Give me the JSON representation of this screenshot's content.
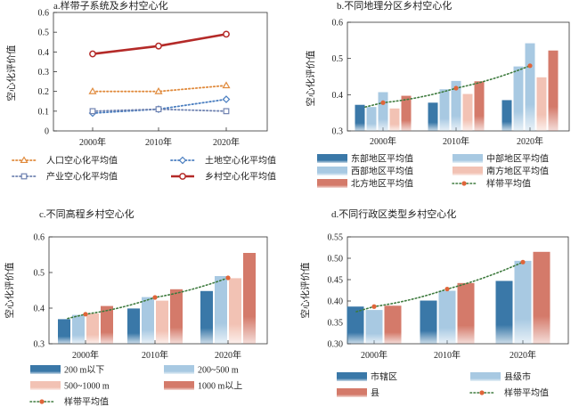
{
  "colors": {
    "dark_blue": "#3a78a8",
    "light_blue": "#a8c9e2",
    "light_pink": "#f2c2b4",
    "red": "#d47a6a",
    "dark_red": "#b42a28",
    "orange": "#e08a3c",
    "blue_dot": "#4a7ec0",
    "slate": "#6f82b0",
    "trend_green": "#3d7a3d",
    "trend_point": "#e0653a"
  },
  "chart_data": [
    {
      "id": "a",
      "type": "line",
      "title": "a.样带子系统及乡村空心化",
      "ylabel": "空心化评价值",
      "categories": [
        "2000年",
        "2010年",
        "2020年"
      ],
      "ylim": [
        0,
        0.6
      ],
      "yticks": [
        "0",
        "0.1",
        "0.2",
        "0.3",
        "0.4",
        "0.5",
        "0.6"
      ],
      "series": [
        {
          "name": "人口空心化平均值",
          "values": [
            0.2,
            0.2,
            0.23
          ],
          "color": "#e08a3c",
          "marker": "triangle",
          "dash": "dot"
        },
        {
          "name": "土地空心化平均值",
          "values": [
            0.09,
            0.11,
            0.16
          ],
          "color": "#4a7ec0",
          "marker": "diamond",
          "dash": "dot"
        },
        {
          "name": "产业空心化平均值",
          "values": [
            0.1,
            0.11,
            0.1
          ],
          "color": "#6f82b0",
          "marker": "square",
          "dash": "dot"
        },
        {
          "name": "乡村空心化平均值",
          "values": [
            0.39,
            0.43,
            0.49
          ],
          "color": "#b42a28",
          "marker": "circle",
          "dash": "solid"
        }
      ],
      "legend_order": [
        0,
        1,
        2,
        3
      ]
    },
    {
      "id": "b",
      "type": "bar",
      "title": "b.不同地理分区乡村空心化",
      "ylabel": "空心化评价值",
      "categories": [
        "2000年",
        "2010年",
        "2020年"
      ],
      "ylim": [
        0.3,
        0.6
      ],
      "yticks": [
        "0.3",
        "0.4",
        "0.5",
        "0.6"
      ],
      "series": [
        {
          "name": "东部地区平均值",
          "values": [
            0.372,
            0.378,
            0.385
          ],
          "color": "#3a78a8"
        },
        {
          "name": "西部地区平均值",
          "values": [
            0.366,
            0.415,
            0.478
          ],
          "color": "#a8c9e2"
        },
        {
          "name": "中部地区平均值",
          "values": [
            0.407,
            0.438,
            0.542
          ],
          "color": "#a8c9e2"
        },
        {
          "name": "南方地区平均值",
          "values": [
            0.362,
            0.402,
            0.448
          ],
          "color": "#f2c2b4"
        },
        {
          "name": "北方地区平均值",
          "values": [
            0.397,
            0.437,
            0.522
          ],
          "color": "#d47a6a"
        }
      ],
      "trend": {
        "name": "样带平均值",
        "values": [
          0.378,
          0.418,
          0.48
        ]
      },
      "legend_order": [
        0,
        2,
        1,
        3,
        4,
        "trend"
      ]
    },
    {
      "id": "c",
      "type": "bar",
      "title": "c.不同高程乡村空心化",
      "ylabel": "空心化评价值",
      "categories": [
        "2000年",
        "2010年",
        "2020年"
      ],
      "ylim": [
        0.3,
        0.6
      ],
      "yticks": [
        "0.3",
        "0.4",
        "0.5",
        "0.6"
      ],
      "series": [
        {
          "name": "200 m以下",
          "values": [
            0.369,
            0.399,
            0.448
          ],
          "color": "#3a78a8"
        },
        {
          "name": "200~500 m",
          "values": [
            0.381,
            0.431,
            0.49
          ],
          "color": "#a8c9e2"
        },
        {
          "name": "500~1000 m",
          "values": [
            0.385,
            0.421,
            0.484
          ],
          "color": "#f2c2b4"
        },
        {
          "name": "1000 m以上",
          "values": [
            0.406,
            0.453,
            0.555
          ],
          "color": "#d47a6a"
        }
      ],
      "trend": {
        "name": "样带平均值",
        "values": [
          0.383,
          0.43,
          0.485
        ]
      },
      "legend_order": [
        0,
        1,
        2,
        3,
        "trend"
      ]
    },
    {
      "id": "d",
      "type": "bar",
      "title": "d.不同行政区类型乡村空心化",
      "ylabel": "空心化评价值",
      "categories": [
        "2000年",
        "2010年",
        "2020年"
      ],
      "ylim": [
        0.3,
        0.55
      ],
      "yticks": [
        "0.30",
        "0.35",
        "0.40",
        "0.45",
        "0.50",
        "0.55"
      ],
      "series": [
        {
          "name": "市辖区",
          "values": [
            0.387,
            0.401,
            0.447
          ],
          "color": "#3a78a8"
        },
        {
          "name": "县级市",
          "values": [
            0.379,
            0.424,
            0.494
          ],
          "color": "#a8c9e2"
        },
        {
          "name": "县",
          "values": [
            0.389,
            0.442,
            0.515
          ],
          "color": "#d47a6a"
        }
      ],
      "trend": {
        "name": "样带平均值",
        "values": [
          0.387,
          0.428,
          0.491
        ]
      },
      "legend_order": [
        0,
        1,
        2,
        "trend"
      ]
    }
  ]
}
